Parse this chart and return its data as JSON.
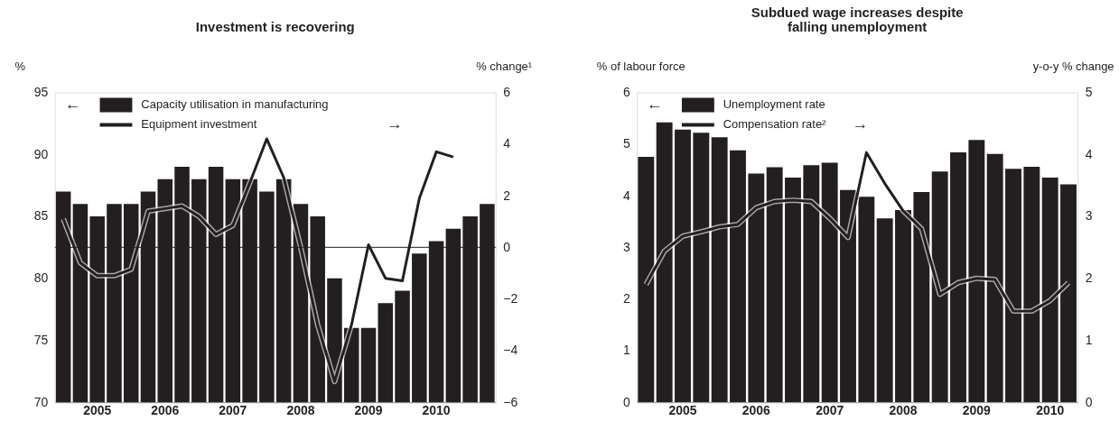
{
  "chart_data": [
    {
      "type": "bar",
      "title": "Investment is recovering",
      "ylabel": "%",
      "y2label": "% change¹",
      "categories": [
        null,
        null,
        "2005",
        null,
        null,
        null,
        "2006",
        null,
        null,
        null,
        "2007",
        null,
        null,
        null,
        "2008",
        null,
        null,
        null,
        "2009",
        null,
        null,
        null,
        "2010",
        null,
        null,
        null
      ],
      "series": [
        {
          "name": "Capacity utilisation in manufacturing",
          "type": "bar",
          "color": "#231f20",
          "values": [
            87,
            86,
            85,
            86,
            86,
            87,
            88,
            89,
            88,
            89,
            88,
            88,
            87,
            88,
            86,
            85,
            80,
            76,
            76,
            78,
            79,
            82,
            83,
            84,
            85,
            86
          ]
        },
        {
          "name": "Equipment investment",
          "type": "line",
          "axis": "y2",
          "color": "#231f20",
          "values": [
            1.1,
            -0.6,
            -1.1,
            -1.1,
            -0.85,
            1.4,
            1.5,
            1.6,
            1.2,
            0.5,
            0.85,
            2.5,
            4.2,
            2.7,
            0.0,
            -3.0,
            -5.2,
            -3.0,
            0.1,
            -1.2,
            -1.3,
            1.9,
            3.7,
            3.5,
            null,
            null
          ]
        }
      ],
      "ylim": [
        70,
        95
      ],
      "yticks": [
        70,
        75,
        80,
        85,
        90,
        95
      ],
      "y2lim": [
        -6,
        6
      ],
      "y2ticks": [
        -6,
        -4,
        -2,
        0,
        2,
        4,
        6
      ],
      "ref_lines": [
        {
          "axis": "y2",
          "value": 0,
          "color": "#231f20"
        }
      ],
      "legend": "top left",
      "annotations": [
        "←",
        "→"
      ]
    },
    {
      "type": "bar",
      "title": "Subdued wage increases despite\nfalling unemployment",
      "ylabel": "% of labour force",
      "y2label": "y-o-y % change",
      "categories": [
        null,
        null,
        "2005",
        null,
        null,
        null,
        "2006",
        null,
        null,
        null,
        "2007",
        null,
        null,
        null,
        "2008",
        null,
        null,
        null,
        "2009",
        null,
        null,
        null,
        "2010",
        null
      ],
      "series": [
        {
          "name": "Unemployment rate",
          "type": "bar",
          "color": "#231f20",
          "values": [
            4.75,
            5.42,
            5.28,
            5.22,
            5.13,
            4.88,
            4.43,
            4.55,
            4.35,
            4.59,
            4.64,
            4.11,
            3.98,
            3.56,
            3.72,
            4.07,
            4.47,
            4.84,
            5.08,
            4.81,
            4.52,
            4.56,
            4.35,
            4.22
          ]
        },
        {
          "name": "Compensation rate²",
          "type": "line",
          "axis": "y2",
          "color": "#231f20",
          "values": [
            1.9,
            2.44,
            2.68,
            2.75,
            2.83,
            2.87,
            3.14,
            3.24,
            3.26,
            3.24,
            2.97,
            2.66,
            4.03,
            3.53,
            3.09,
            2.8,
            1.74,
            1.93,
            2.0,
            1.98,
            1.47,
            1.47,
            1.64,
            1.93
          ]
        }
      ],
      "ylim": [
        0,
        6
      ],
      "yticks": [
        0,
        1,
        2,
        3,
        4,
        5,
        6
      ],
      "y2lim": [
        0,
        5
      ],
      "y2ticks": [
        0,
        1,
        2,
        3,
        4,
        5
      ],
      "legend": "top left",
      "annotations": [
        "←",
        "→"
      ]
    }
  ]
}
